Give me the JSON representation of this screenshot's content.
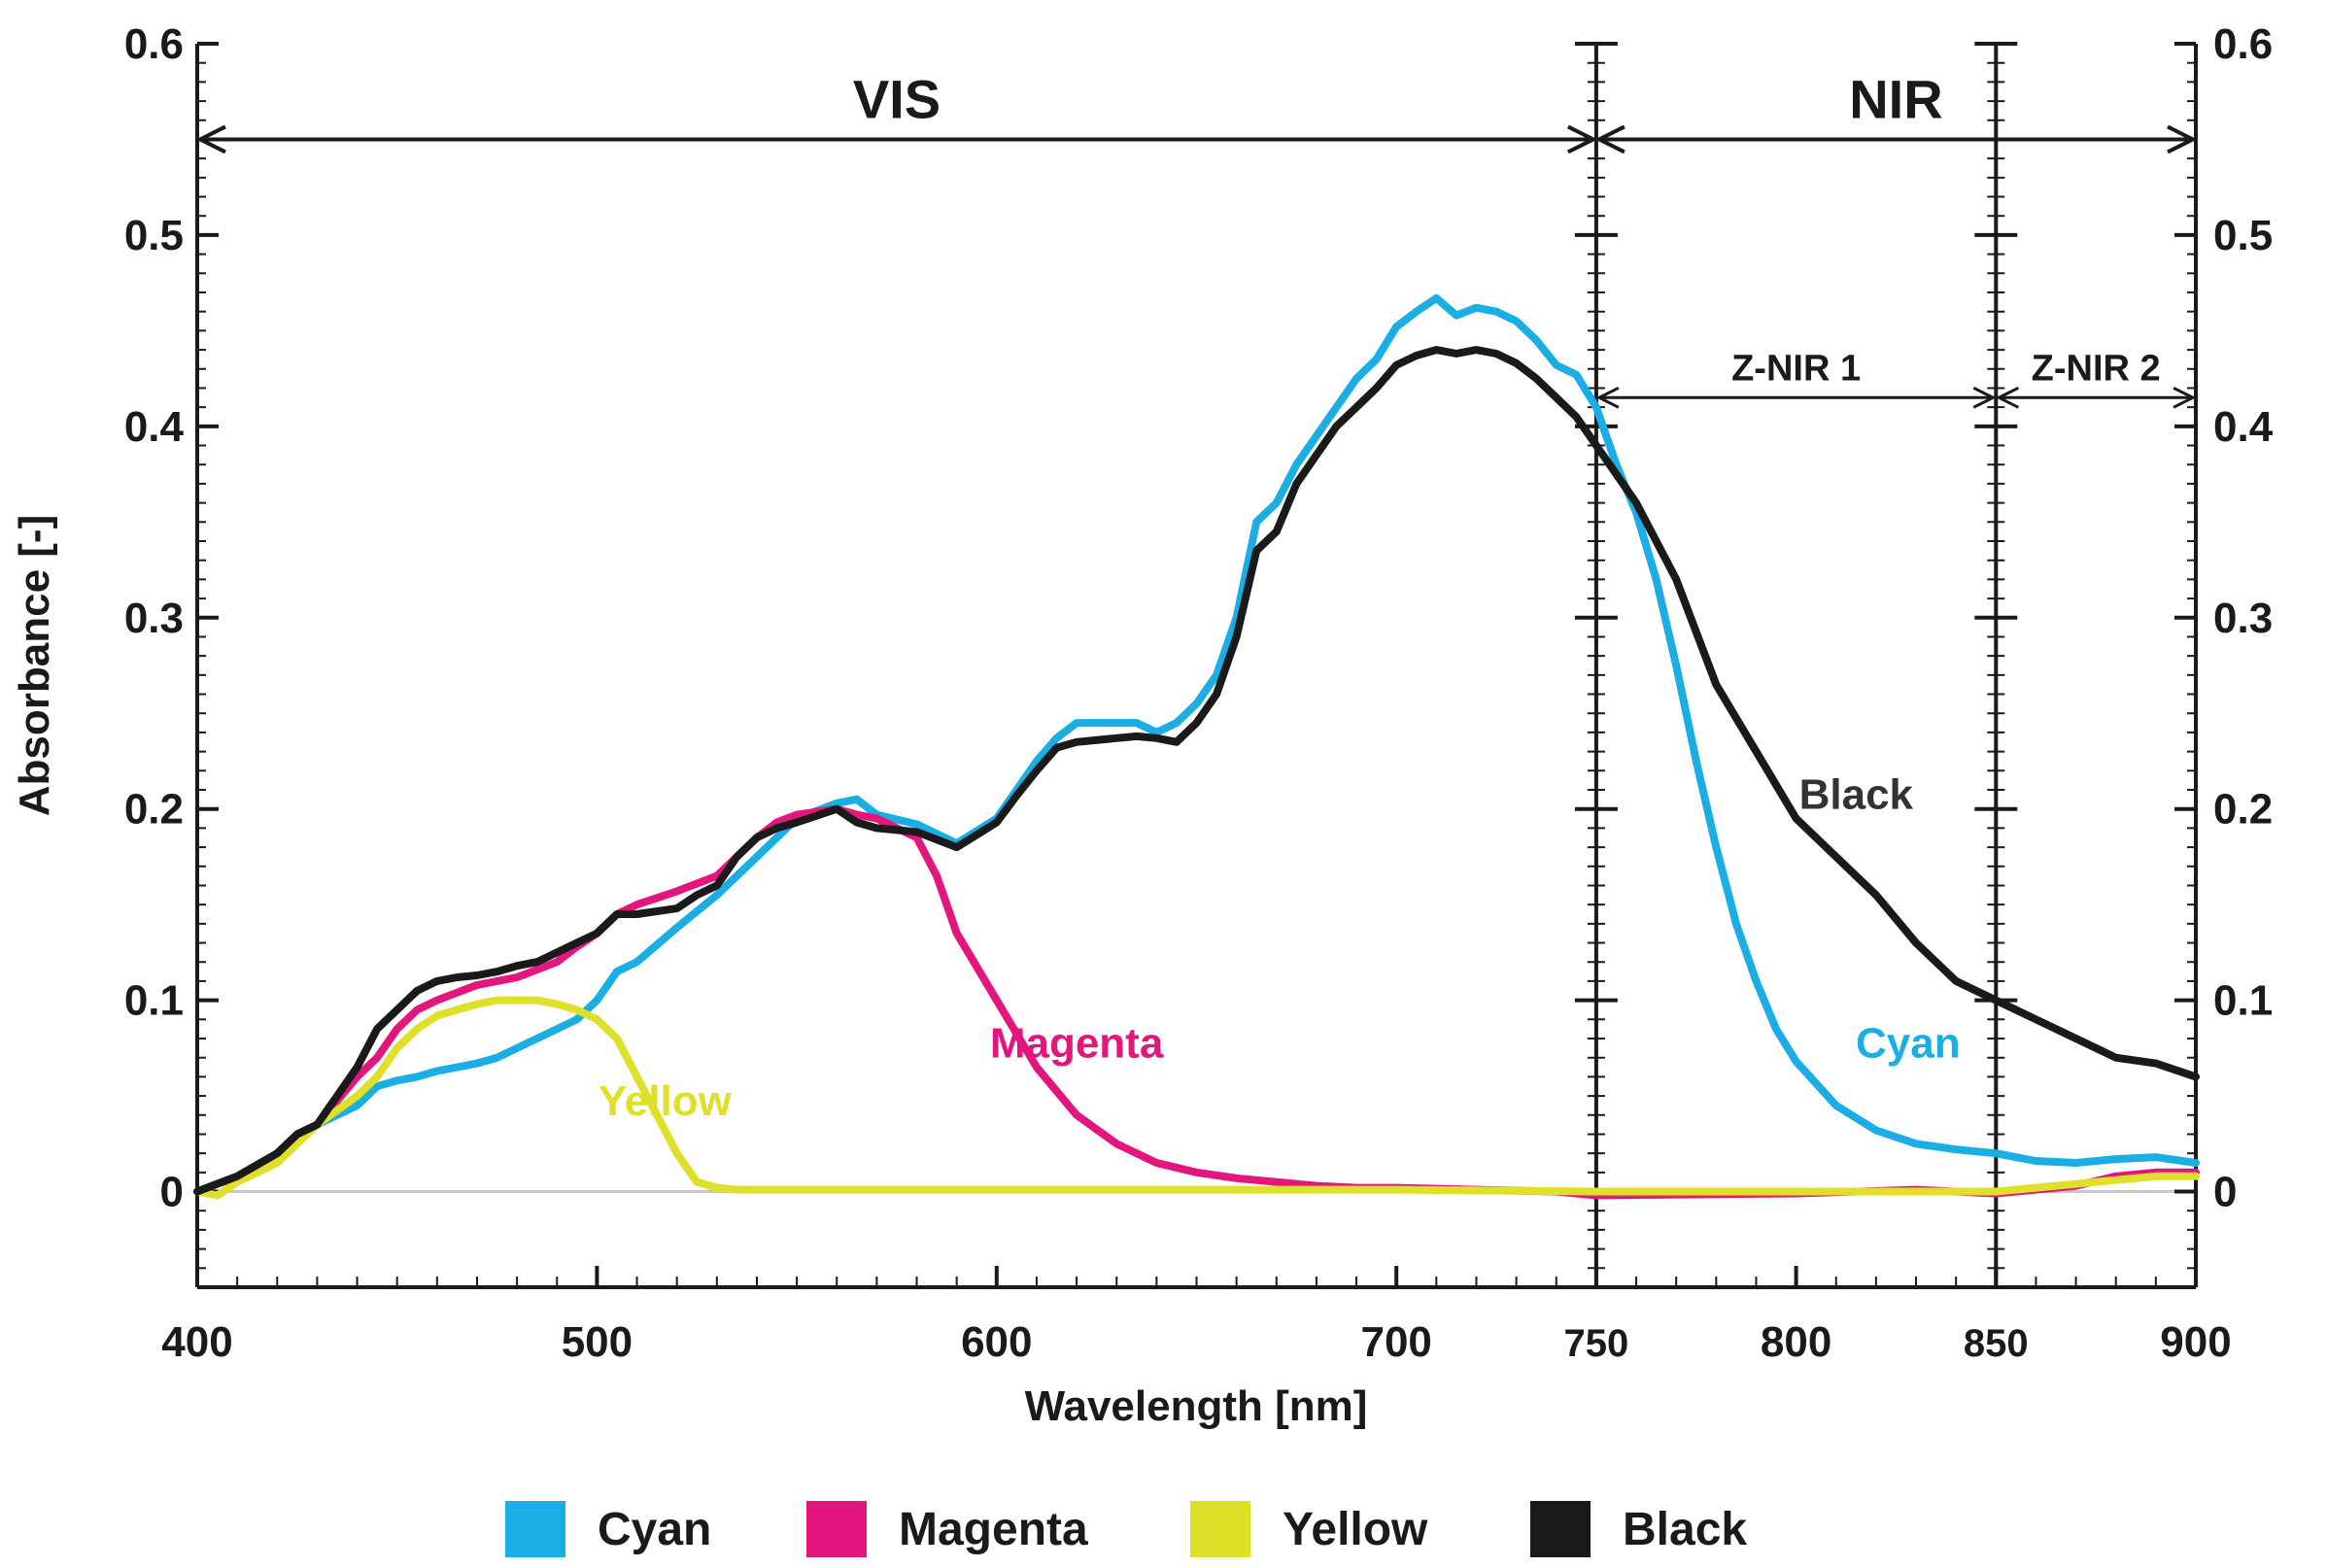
{
  "chart_data": {
    "type": "line",
    "title": "",
    "xlabel": "Wavelength [nm]",
    "ylabel": "Absorbance [-]",
    "xlim": [
      400,
      900
    ],
    "ylim": [
      -0.05,
      0.6
    ],
    "x_ticks": [
      400,
      500,
      600,
      700,
      750,
      800,
      850,
      900
    ],
    "x_tick_labels": [
      "400",
      "500",
      "600",
      "700",
      "750",
      "800",
      "850",
      "900"
    ],
    "y_ticks": [
      0,
      0.1,
      0.2,
      0.3,
      0.4,
      0.5,
      0.6
    ],
    "y_tick_labels": [
      "0",
      "0.1",
      "0.2",
      "0.3",
      "0.4",
      "0.5",
      "0.6"
    ],
    "regions": [
      {
        "label": "VIS",
        "from": 400,
        "to": 750,
        "y": 0.55
      },
      {
        "label": "NIR",
        "from": 750,
        "to": 900,
        "y": 0.55
      },
      {
        "label": "Z-NIR 1",
        "from": 750,
        "to": 850,
        "y": 0.415
      },
      {
        "label": "Z-NIR 2",
        "from": 850,
        "to": 900,
        "y": 0.415
      }
    ],
    "dividers": [
      750,
      850
    ],
    "annotations": [
      {
        "text": "Yellow",
        "series": "Yellow",
        "x": 517,
        "y": 0.04
      },
      {
        "text": "Magenta",
        "series": "Magenta",
        "x": 620,
        "y": 0.07
      },
      {
        "text": "Black",
        "series": "Black",
        "x": 815,
        "y": 0.2
      },
      {
        "text": "Cyan",
        "series": "Cyan",
        "x": 828,
        "y": 0.07
      }
    ],
    "legend": {
      "position": "bottom",
      "entries": [
        "Cyan",
        "Magenta",
        "Yellow",
        "Black"
      ]
    },
    "series": [
      {
        "name": "Cyan",
        "color": "#1aaee5",
        "x": [
          400,
          410,
          420,
          425,
          430,
          440,
          445,
          450,
          455,
          460,
          470,
          475,
          480,
          490,
          495,
          500,
          505,
          510,
          520,
          530,
          540,
          545,
          550,
          560,
          565,
          570,
          580,
          590,
          600,
          605,
          610,
          615,
          620,
          630,
          635,
          640,
          645,
          650,
          655,
          660,
          665,
          670,
          675,
          680,
          685,
          690,
          695,
          700,
          705,
          710,
          715,
          720,
          725,
          730,
          735,
          740,
          745,
          750,
          755,
          760,
          765,
          770,
          775,
          780,
          785,
          790,
          795,
          800,
          810,
          820,
          830,
          840,
          850,
          860,
          870,
          880,
          890,
          900
        ],
        "y": [
          0,
          0.008,
          0.02,
          0.03,
          0.035,
          0.045,
          0.055,
          0.058,
          0.06,
          0.063,
          0.067,
          0.07,
          0.075,
          0.085,
          0.09,
          0.1,
          0.115,
          0.12,
          0.138,
          0.155,
          0.175,
          0.185,
          0.195,
          0.203,
          0.205,
          0.197,
          0.192,
          0.182,
          0.195,
          0.21,
          0.225,
          0.237,
          0.245,
          0.245,
          0.245,
          0.24,
          0.245,
          0.255,
          0.27,
          0.3,
          0.35,
          0.36,
          0.38,
          0.395,
          0.41,
          0.425,
          0.435,
          0.452,
          0.46,
          0.467,
          0.458,
          0.462,
          0.46,
          0.455,
          0.445,
          0.432,
          0.427,
          0.41,
          0.38,
          0.355,
          0.32,
          0.275,
          0.225,
          0.18,
          0.14,
          0.11,
          0.085,
          0.068,
          0.045,
          0.032,
          0.025,
          0.022,
          0.02,
          0.016,
          0.015,
          0.017,
          0.018,
          0.015
        ]
      },
      {
        "name": "Magenta",
        "color": "#e2167c",
        "x": [
          400,
          410,
          420,
          425,
          430,
          440,
          445,
          450,
          455,
          460,
          470,
          475,
          480,
          490,
          495,
          500,
          505,
          510,
          520,
          530,
          540,
          545,
          550,
          560,
          565,
          570,
          580,
          585,
          590,
          600,
          610,
          620,
          630,
          640,
          650,
          660,
          670,
          680,
          690,
          700,
          720,
          740,
          750,
          800,
          830,
          850,
          870,
          880,
          890,
          900
        ],
        "y": [
          0,
          0.008,
          0.02,
          0.03,
          0.035,
          0.06,
          0.07,
          0.085,
          0.095,
          0.1,
          0.108,
          0.11,
          0.112,
          0.12,
          0.128,
          0.135,
          0.145,
          0.15,
          0.157,
          0.165,
          0.185,
          0.193,
          0.197,
          0.2,
          0.197,
          0.195,
          0.185,
          0.165,
          0.135,
          0.1,
          0.065,
          0.04,
          0.025,
          0.015,
          0.01,
          0.007,
          0.005,
          0.003,
          0.002,
          0.002,
          0.001,
          0,
          -0.002,
          -0.001,
          0.001,
          -0.001,
          0.003,
          0.008,
          0.01,
          0.01
        ]
      },
      {
        "name": "Yellow",
        "color": "#dfe02a",
        "x": [
          400,
          405,
          410,
          420,
          425,
          430,
          440,
          445,
          450,
          455,
          460,
          465,
          470,
          475,
          480,
          485,
          490,
          495,
          500,
          505,
          510,
          515,
          520,
          525,
          530,
          535,
          540,
          550,
          600,
          650,
          700,
          750,
          800,
          850,
          860,
          870,
          880,
          890,
          900
        ],
        "y": [
          0,
          -0.002,
          0.005,
          0.015,
          0.025,
          0.035,
          0.05,
          0.06,
          0.075,
          0.085,
          0.092,
          0.095,
          0.098,
          0.1,
          0.1,
          0.1,
          0.098,
          0.095,
          0.09,
          0.08,
          0.06,
          0.04,
          0.02,
          0.005,
          0.002,
          0.001,
          0.001,
          0.001,
          0.001,
          0.001,
          0.001,
          0,
          0,
          0,
          0.002,
          0.004,
          0.006,
          0.008,
          0.008
        ]
      },
      {
        "name": "Black",
        "color": "#1a1a1a",
        "x": [
          400,
          410,
          420,
          425,
          430,
          440,
          445,
          450,
          455,
          460,
          465,
          470,
          475,
          480,
          485,
          490,
          495,
          500,
          505,
          510,
          520,
          525,
          530,
          535,
          540,
          545,
          550,
          560,
          565,
          570,
          580,
          590,
          600,
          605,
          610,
          615,
          620,
          630,
          635,
          640,
          645,
          650,
          655,
          660,
          665,
          670,
          675,
          680,
          685,
          690,
          695,
          700,
          705,
          710,
          715,
          720,
          725,
          730,
          735,
          740,
          745,
          750,
          760,
          770,
          780,
          790,
          800,
          810,
          820,
          830,
          840,
          850,
          860,
          870,
          880,
          890,
          900
        ],
        "y": [
          0,
          0.008,
          0.02,
          0.03,
          0.035,
          0.065,
          0.085,
          0.095,
          0.105,
          0.11,
          0.112,
          0.113,
          0.115,
          0.118,
          0.12,
          0.125,
          0.13,
          0.135,
          0.145,
          0.145,
          0.148,
          0.155,
          0.16,
          0.175,
          0.185,
          0.19,
          0.193,
          0.2,
          0.193,
          0.19,
          0.188,
          0.18,
          0.193,
          0.207,
          0.22,
          0.232,
          0.235,
          0.237,
          0.238,
          0.237,
          0.235,
          0.245,
          0.26,
          0.29,
          0.335,
          0.345,
          0.37,
          0.385,
          0.4,
          0.41,
          0.42,
          0.432,
          0.437,
          0.44,
          0.438,
          0.44,
          0.438,
          0.433,
          0.425,
          0.415,
          0.405,
          0.39,
          0.36,
          0.32,
          0.265,
          0.23,
          0.195,
          0.175,
          0.155,
          0.13,
          0.11,
          0.1,
          0.09,
          0.08,
          0.07,
          0.067,
          0.06
        ]
      }
    ]
  }
}
